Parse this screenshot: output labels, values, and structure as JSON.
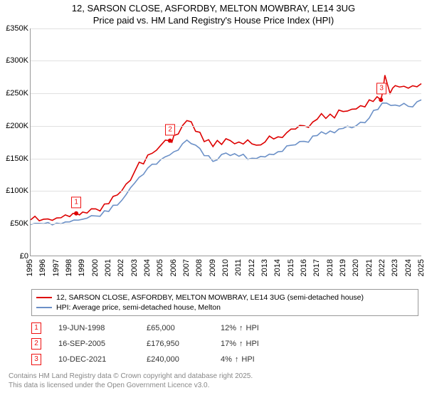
{
  "title_line1": "12, SARSON CLOSE, ASFORDBY, MELTON MOWBRAY, LE14 3UG",
  "title_line2": "Price paid vs. HM Land Registry's House Price Index (HPI)",
  "chart": {
    "type": "line",
    "ylim": [
      0,
      350
    ],
    "ytick_step": 50,
    "y_ticks": [
      "£0",
      "£50K",
      "£100K",
      "£150K",
      "£200K",
      "£250K",
      "£300K",
      "£350K"
    ],
    "x_years": [
      "1995",
      "1996",
      "1997",
      "1998",
      "1999",
      "2000",
      "2001",
      "2002",
      "2003",
      "2004",
      "2005",
      "2006",
      "2007",
      "2008",
      "2009",
      "2010",
      "2011",
      "2012",
      "2013",
      "2014",
      "2015",
      "2016",
      "2017",
      "2018",
      "2019",
      "2020",
      "2021",
      "2022",
      "2023",
      "2024",
      "2025"
    ],
    "background_color": "#ffffff",
    "grid_color": "#e0e0e0",
    "series": [
      {
        "name": "price_paid",
        "color": "#dd0000",
        "width": 1.6,
        "points": [
          [
            0,
            55
          ],
          [
            1,
            56
          ],
          [
            2,
            58
          ],
          [
            3,
            60
          ],
          [
            3.5,
            65
          ],
          [
            4,
            67
          ],
          [
            5,
            72
          ],
          [
            6,
            80
          ],
          [
            7,
            100
          ],
          [
            8,
            130
          ],
          [
            9,
            155
          ],
          [
            10,
            170
          ],
          [
            10.7,
            177
          ],
          [
            11,
            185
          ],
          [
            12,
            208
          ],
          [
            13,
            190
          ],
          [
            14,
            168
          ],
          [
            15,
            180
          ],
          [
            16,
            175
          ],
          [
            17,
            172
          ],
          [
            18,
            175
          ],
          [
            19,
            183
          ],
          [
            20,
            195
          ],
          [
            21,
            200
          ],
          [
            22,
            210
          ],
          [
            23,
            218
          ],
          [
            24,
            222
          ],
          [
            25,
            226
          ],
          [
            26,
            240
          ],
          [
            26.9,
            240
          ],
          [
            27.2,
            278
          ],
          [
            27.6,
            250
          ],
          [
            28,
            262
          ],
          [
            29,
            258
          ],
          [
            30,
            265
          ]
        ]
      },
      {
        "name": "hpi",
        "color": "#6b90c7",
        "width": 1.6,
        "points": [
          [
            0,
            48
          ],
          [
            1,
            49
          ],
          [
            2,
            50
          ],
          [
            3,
            52
          ],
          [
            4,
            56
          ],
          [
            5,
            61
          ],
          [
            6,
            68
          ],
          [
            7,
            85
          ],
          [
            8,
            112
          ],
          [
            9,
            135
          ],
          [
            10,
            148
          ],
          [
            11,
            160
          ],
          [
            12,
            178
          ],
          [
            13,
            165
          ],
          [
            14,
            145
          ],
          [
            15,
            158
          ],
          [
            16,
            153
          ],
          [
            17,
            150
          ],
          [
            18,
            152
          ],
          [
            19,
            160
          ],
          [
            20,
            170
          ],
          [
            21,
            176
          ],
          [
            22,
            185
          ],
          [
            23,
            192
          ],
          [
            24,
            196
          ],
          [
            25,
            200
          ],
          [
            26,
            212
          ],
          [
            27,
            235
          ],
          [
            28,
            232
          ],
          [
            29,
            230
          ],
          [
            30,
            240
          ]
        ]
      }
    ],
    "markers": [
      {
        "n": "1",
        "x": 3.5,
        "y": 65
      },
      {
        "n": "2",
        "x": 10.7,
        "y": 177
      },
      {
        "n": "3",
        "x": 26.9,
        "y": 240
      }
    ]
  },
  "legend": [
    {
      "color": "#dd0000",
      "label": "12, SARSON CLOSE, ASFORDBY, MELTON MOWBRAY, LE14 3UG (semi-detached house)"
    },
    {
      "color": "#6b90c7",
      "label": "HPI: Average price, semi-detached house, Melton"
    }
  ],
  "transactions": [
    {
      "n": "1",
      "date": "19-JUN-1998",
      "price": "£65,000",
      "pct": "12%",
      "suffix": "HPI"
    },
    {
      "n": "2",
      "date": "16-SEP-2005",
      "price": "£176,950",
      "pct": "17%",
      "suffix": "HPI"
    },
    {
      "n": "3",
      "date": "10-DEC-2021",
      "price": "£240,000",
      "pct": "4%",
      "suffix": "HPI"
    }
  ],
  "footer_line1": "Contains HM Land Registry data © Crown copyright and database right 2025.",
  "footer_line2": "This data is licensed under the Open Government Licence v3.0."
}
